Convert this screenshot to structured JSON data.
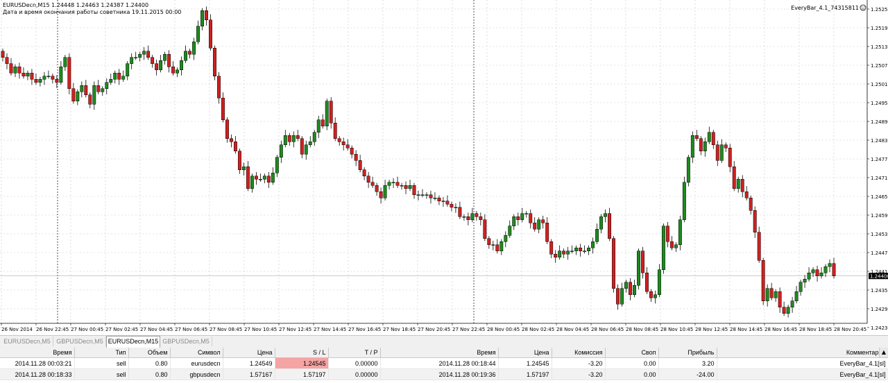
{
  "chart": {
    "title_line1": "EURUSDecn,M15  1.24448 1.24463 1.24387 1.24400",
    "title_line2": "Дата и время окончания работы советника 19.11.2015 00:00",
    "ea_label": "EveryBar_4.1_74315811",
    "current_price": "1.24400",
    "price_labels": [
      "1.25255",
      "1.25195",
      "1.25135",
      "1.25075",
      "1.25015",
      "1.24955",
      "1.24895",
      "1.24835",
      "1.24775",
      "1.24715",
      "1.24655",
      "1.24595",
      "1.24535",
      "1.24475",
      "1.24415",
      "1.24355",
      "1.24295",
      "1.24235"
    ],
    "time_labels": [
      "26 Nov 2014",
      "26 Nov 22:45",
      "27 Nov 00:45",
      "27 Nov 02:45",
      "27 Nov 04:45",
      "27 Nov 06:45",
      "27 Nov 08:45",
      "27 Nov 10:45",
      "27 Nov 12:45",
      "27 Nov 14:45",
      "27 Nov 16:45",
      "27 Nov 18:45",
      "27 Nov 20:45",
      "27 Nov 22:45",
      "28 Nov 00:45",
      "28 Nov 02:45",
      "28 Nov 04:45",
      "28 Nov 06:45",
      "28 Nov 08:45",
      "28 Nov 10:45",
      "28 Nov 12:45",
      "28 Nov 14:45",
      "28 Nov 16:45",
      "28 Nov 18:45",
      "28 Nov 20:45"
    ],
    "bull_color": "#1e8a1e",
    "bear_color": "#d02020",
    "grid_color": "#c8c8c8",
    "closes": [
      1.251,
      1.2508,
      1.2505,
      1.2507,
      1.2505,
      1.2504,
      1.2505,
      1.2503,
      1.2502,
      1.2503,
      1.2504,
      1.2504,
      1.2503,
      1.2502,
      1.2507,
      1.251,
      1.25,
      1.2496,
      1.2499,
      1.2501,
      1.2498,
      1.2495,
      1.2501,
      1.2499,
      1.25,
      1.2502,
      1.2503,
      1.2505,
      1.2503,
      1.2504,
      1.2508,
      1.251,
      1.251,
      1.2511,
      1.2512,
      1.251,
      1.2508,
      1.2506,
      1.2509,
      1.2511,
      1.2507,
      1.2505,
      1.2506,
      1.2509,
      1.2512,
      1.2511,
      1.2515,
      1.252,
      1.2525,
      1.2522,
      1.2513,
      1.2504,
      1.2497,
      1.249,
      1.2484,
      1.2483,
      1.248,
      1.2474,
      1.2475,
      1.2468,
      1.2472,
      1.2471,
      1.2471,
      1.2472,
      1.247,
      1.2473,
      1.2478,
      1.2482,
      1.2485,
      1.2483,
      1.2485,
      1.2484,
      1.2479,
      1.2482,
      1.2483,
      1.2486,
      1.249,
      1.2488,
      1.2496,
      1.2489,
      1.2484,
      1.2483,
      1.2482,
      1.2481,
      1.2479,
      1.2477,
      1.2474,
      1.2472,
      1.247,
      1.2469,
      1.2467,
      1.2465,
      1.2469,
      1.247,
      1.247,
      1.2469,
      1.2469,
      1.2468,
      1.2469,
      1.2466,
      1.2466,
      1.2466,
      1.2466,
      1.2465,
      1.2465,
      1.2464,
      1.2464,
      1.2463,
      1.2462,
      1.2462,
      1.2459,
      1.2459,
      1.2458,
      1.246,
      1.2459,
      1.2458,
      1.2452,
      1.245,
      1.245,
      1.2448,
      1.2451,
      1.2453,
      1.2456,
      1.2459,
      1.2458,
      1.246,
      1.246,
      1.2457,
      1.2455,
      1.2458,
      1.2457,
      1.2451,
      1.2447,
      1.2446,
      1.2448,
      1.2447,
      1.2448,
      1.2448,
      1.2449,
      1.2448,
      1.2448,
      1.2449,
      1.2451,
      1.2455,
      1.2459,
      1.246,
      1.2452,
      1.2436,
      1.2431,
      1.2436,
      1.2438,
      1.2434,
      1.2437,
      1.2448,
      1.2441,
      1.2435,
      1.2433,
      1.2434,
      1.2442,
      1.2456,
      1.2451,
      1.2449,
      1.245,
      1.2458,
      1.247,
      1.2478,
      1.2485,
      1.2484,
      1.248,
      1.2483,
      1.2486,
      1.2482,
      1.2477,
      1.2482,
      1.2481,
      1.2475,
      1.2468,
      1.2471,
      1.2467,
      1.2465,
      1.2461,
      1.2454,
      1.2445,
      1.2432,
      1.2436,
      1.2433,
      1.2435,
      1.243,
      1.2428,
      1.243,
      1.2432,
      1.2435,
      1.2438,
      1.2439,
      1.2441,
      1.2442,
      1.244,
      1.2441,
      1.2443,
      1.2444,
      1.244
    ]
  },
  "tabs": [
    "EURUSDecn,M5",
    "GBPUSDecn,M5",
    "EURUSDecn,M15",
    "GBPUSDecn,M5"
  ],
  "active_tab": 2,
  "table": {
    "headers": [
      "Время",
      "Тип",
      "Объем",
      "Символ",
      "Цена",
      "S / L",
      "T / P",
      "Время",
      "Цена",
      "Комиссия",
      "Своп",
      "Прибыль",
      "Комментарий"
    ],
    "rows": [
      [
        "2014.11.28 00:03:21",
        "sell",
        "0.80",
        "eurusdecn",
        "1.24549",
        "1.24545",
        "0.00000",
        "2014.11.28 00:18:44",
        "1.24545",
        "-3.20",
        "0.00",
        "3.20",
        "EveryBar_4.1[sl]"
      ],
      [
        "2014.11.28 00:18:33",
        "sell",
        "0.80",
        "gbpusdecn",
        "1.57167",
        "1.57197",
        "0.00000",
        "2014.11.28 00:19:36",
        "1.57197",
        "-3.20",
        "0.00",
        "-24.00",
        "EveryBar_4.1[sl]"
      ]
    ]
  }
}
